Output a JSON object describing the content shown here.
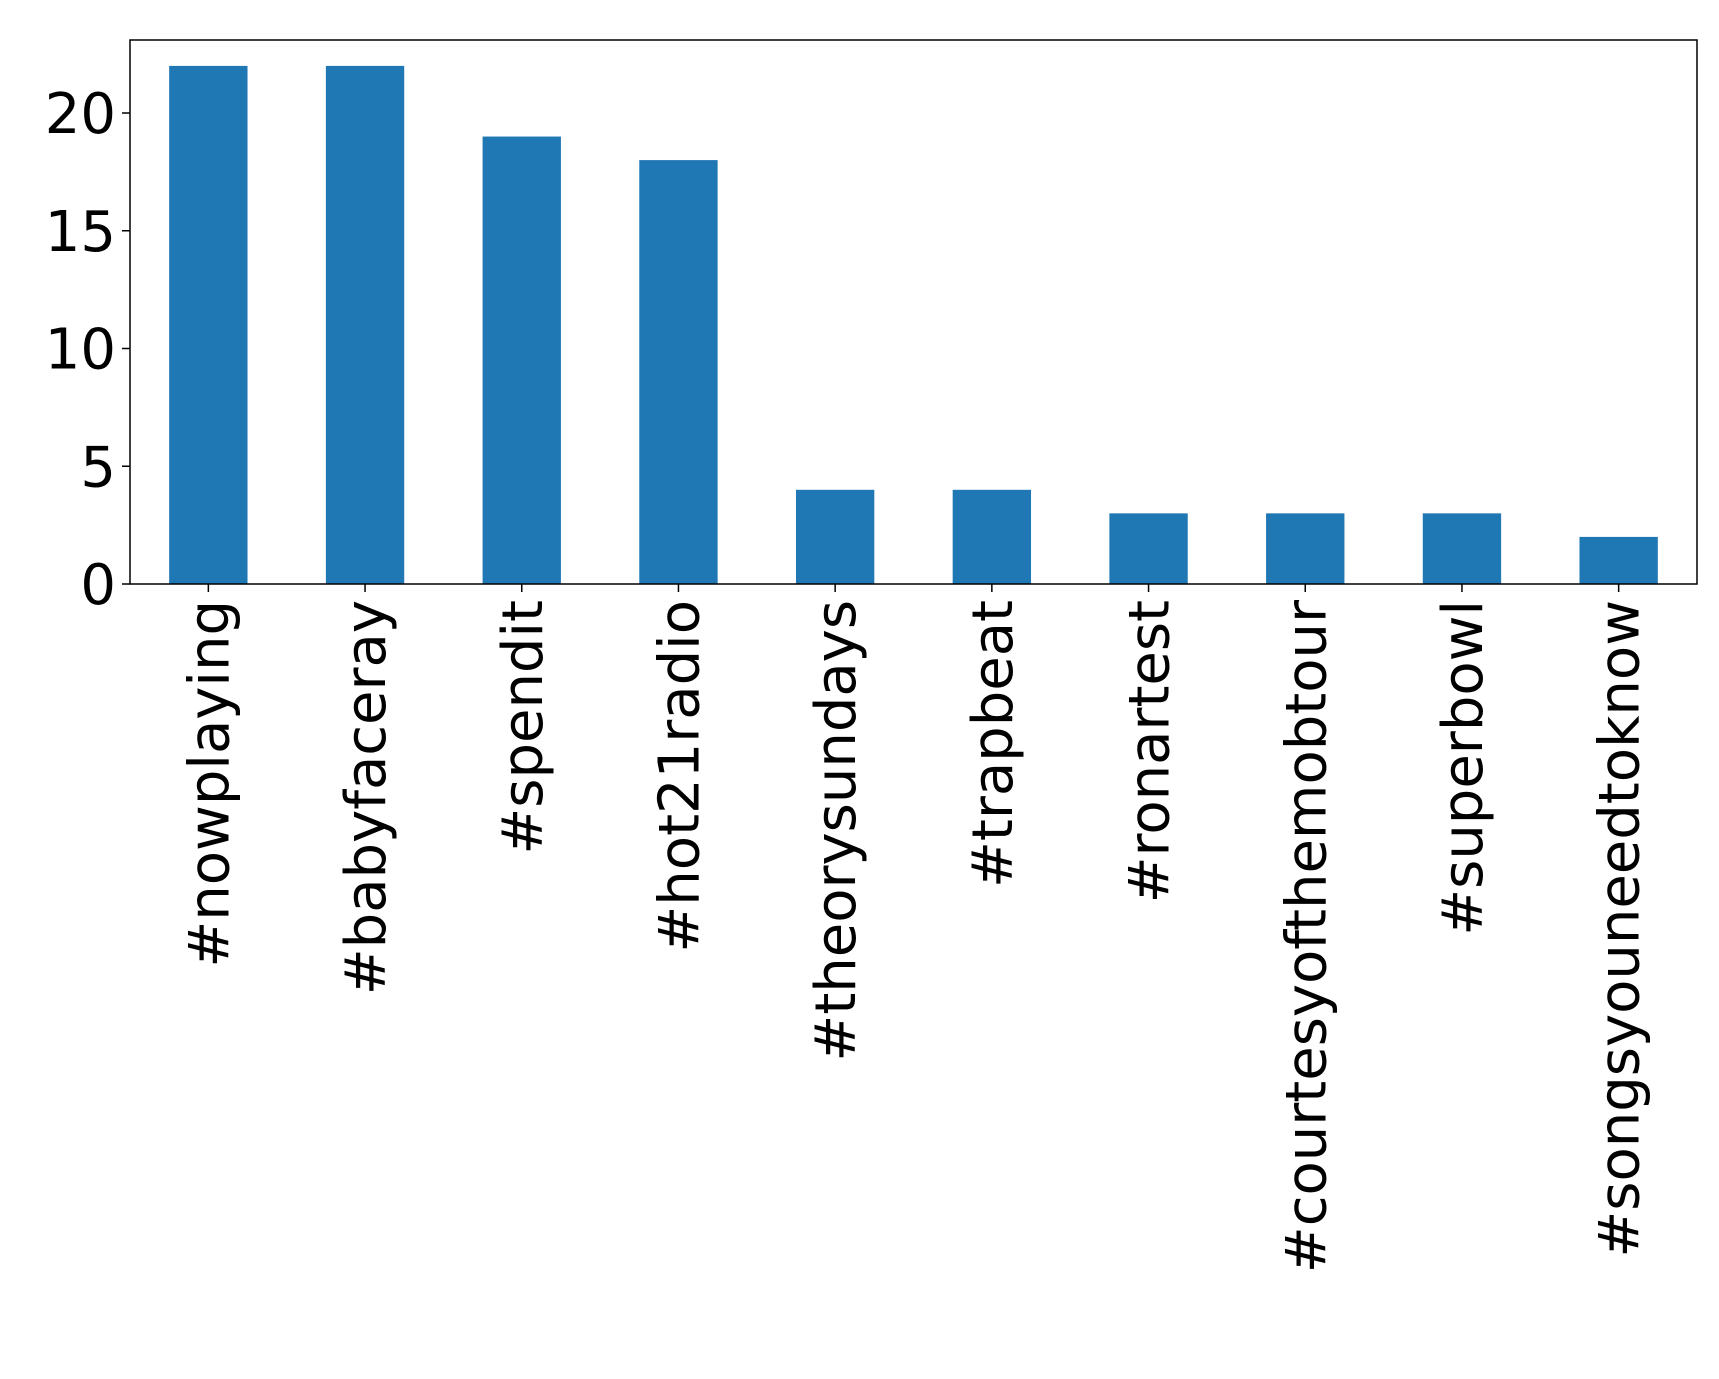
{
  "chart_data": {
    "type": "bar",
    "title": "",
    "xlabel": "",
    "ylabel": "",
    "categories": [
      "#nowplaying",
      "#babyfaceray",
      "#spendit",
      "#hot21radio",
      "#theorysundays",
      "#trapbeat",
      "#ronartest",
      "#courtesyofthemobtour",
      "#superbowl",
      "#songsyouneedtoknow"
    ],
    "values": [
      22,
      22,
      19,
      18,
      4,
      4,
      3,
      3,
      3,
      2
    ],
    "ylim": [
      0,
      23.1
    ],
    "yticks": [
      0,
      5,
      10,
      15,
      20
    ],
    "ytick_labels": [
      "0",
      "5",
      "10",
      "15",
      "20"
    ],
    "x_tick_rotation": "vertical",
    "grid": false,
    "legend": "none",
    "bar_color": "#1f77b4",
    "axis_color": "#000000"
  }
}
